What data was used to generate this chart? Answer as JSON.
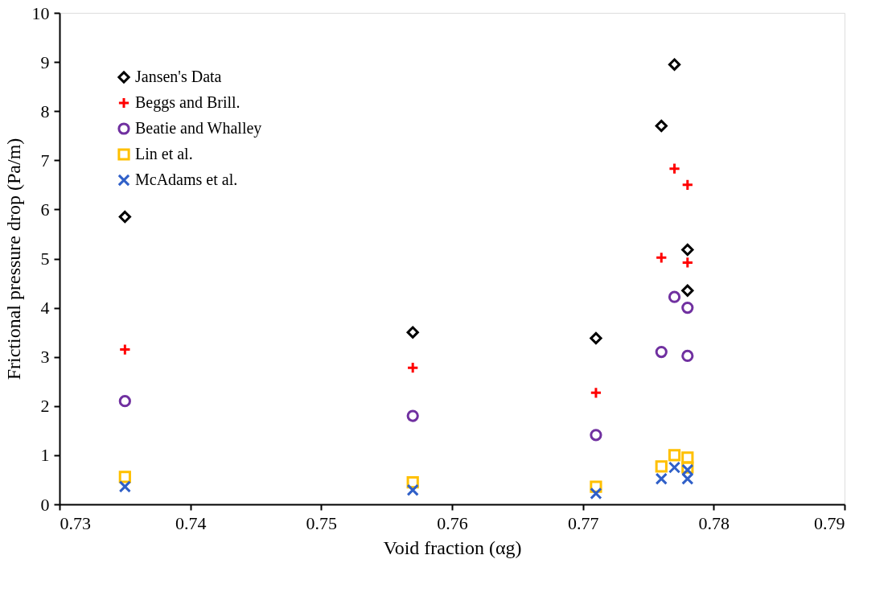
{
  "chart_data": {
    "type": "scatter",
    "xlabel": "Void fraction (αg)",
    "ylabel": "Frictional pressure drop (Pa/m)",
    "x": [
      0.735,
      0.757,
      0.771,
      0.776,
      0.777,
      0.778,
      0.778
    ],
    "series": [
      {
        "name": "Jansen's Data",
        "color": "#000000",
        "marker": "diamond",
        "values": [
          5.85,
          3.5,
          3.38,
          7.7,
          8.95,
          5.18,
          4.35
        ]
      },
      {
        "name": "Beggs and Brill.",
        "color": "#ff0000",
        "marker": "plus",
        "values": [
          3.15,
          2.78,
          2.27,
          5.02,
          6.83,
          6.5,
          4.92
        ]
      },
      {
        "name": "Beatie and Whalley",
        "color": "#7030a0",
        "marker": "circle",
        "values": [
          2.1,
          1.8,
          1.41,
          3.1,
          4.22,
          4.0,
          3.02
        ]
      },
      {
        "name": "Lin et al.",
        "color": "#ffc000",
        "marker": "square",
        "values": [
          0.56,
          0.45,
          0.36,
          0.77,
          1.0,
          0.95,
          0.75
        ]
      },
      {
        "name": "McAdams et al.",
        "color": "#3060c8",
        "marker": "cross",
        "values": [
          0.36,
          0.29,
          0.22,
          0.52,
          0.75,
          0.7,
          0.52
        ]
      }
    ],
    "xlim": [
      0.73,
      0.79
    ],
    "xticks": [
      0.73,
      0.74,
      0.75,
      0.76,
      0.77,
      0.78,
      0.79
    ],
    "ylim": [
      0,
      10
    ],
    "yticks": [
      0,
      1,
      2,
      3,
      4,
      5,
      6,
      7,
      8,
      9,
      10
    ],
    "grid": false,
    "legend": "top left"
  }
}
